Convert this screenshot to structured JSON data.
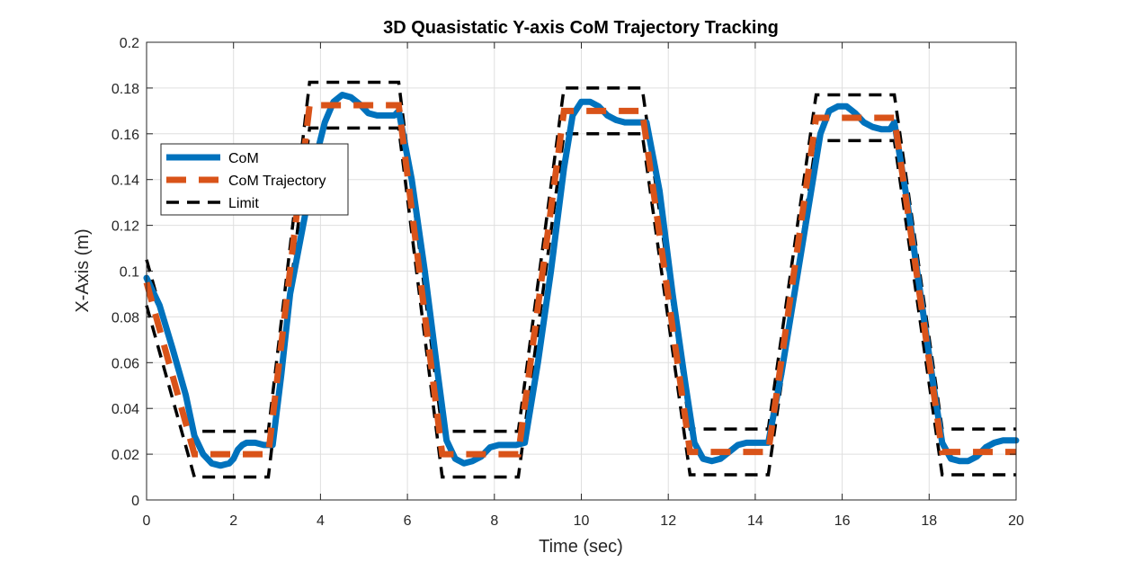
{
  "chart_data": {
    "type": "line",
    "title": "3D Quasistatic Y-axis CoM Trajectory Tracking",
    "xlabel": "Time (sec)",
    "ylabel": "X-Axis (m)",
    "xlim": [
      0,
      20
    ],
    "ylim": [
      0,
      0.2
    ],
    "xticks": [
      0,
      2,
      4,
      6,
      8,
      10,
      12,
      14,
      16,
      18,
      20
    ],
    "yticks": [
      0,
      0.02,
      0.04,
      0.06,
      0.08,
      0.1,
      0.12,
      0.14,
      0.16,
      0.18,
      0.2
    ],
    "xtick_labels": [
      "0",
      "2",
      "4",
      "6",
      "8",
      "10",
      "12",
      "14",
      "16",
      "18",
      "20"
    ],
    "ytick_labels": [
      "0",
      "0.02",
      "0.04",
      "0.06",
      "0.08",
      "0.1",
      "0.12",
      "0.14",
      "0.16",
      "0.18",
      "0.2"
    ],
    "grid": true,
    "legend_position": "upper-left",
    "series": [
      {
        "name": "CoM",
        "color": "#0072BD",
        "style": "solid",
        "x": [
          0,
          0.3,
          0.6,
          0.9,
          1.1,
          1.3,
          1.5,
          1.7,
          1.9,
          2.0,
          2.1,
          2.2,
          2.3,
          2.5,
          2.7,
          2.9,
          3.1,
          3.3,
          3.6,
          3.9,
          4.1,
          4.3,
          4.5,
          4.7,
          4.9,
          5.1,
          5.3,
          5.5,
          5.7,
          5.8,
          6.1,
          6.4,
          6.7,
          6.9,
          7.1,
          7.3,
          7.5,
          7.7,
          7.9,
          8.1,
          8.3,
          8.5,
          8.7,
          9.0,
          9.3,
          9.6,
          9.8,
          10.0,
          10.2,
          10.4,
          10.6,
          10.8,
          11.0,
          11.2,
          11.4,
          11.5,
          11.8,
          12.1,
          12.4,
          12.6,
          12.8,
          13.0,
          13.2,
          13.4,
          13.6,
          13.8,
          14.0,
          14.2,
          14.3,
          14.6,
          14.9,
          15.2,
          15.5,
          15.7,
          15.9,
          16.1,
          16.3,
          16.5,
          16.7,
          16.9,
          17.1,
          17.2,
          17.5,
          17.8,
          18.1,
          18.3,
          18.5,
          18.7,
          18.9,
          19.1,
          19.3,
          19.5,
          19.7,
          19.9,
          20.0
        ],
        "values": [
          0.097,
          0.085,
          0.066,
          0.046,
          0.028,
          0.02,
          0.016,
          0.015,
          0.016,
          0.018,
          0.022,
          0.024,
          0.025,
          0.025,
          0.024,
          0.024,
          0.055,
          0.09,
          0.12,
          0.15,
          0.165,
          0.174,
          0.177,
          0.176,
          0.173,
          0.169,
          0.168,
          0.168,
          0.168,
          0.17,
          0.14,
          0.1,
          0.055,
          0.026,
          0.018,
          0.016,
          0.017,
          0.019,
          0.023,
          0.024,
          0.024,
          0.024,
          0.025,
          0.06,
          0.1,
          0.145,
          0.168,
          0.174,
          0.174,
          0.172,
          0.168,
          0.166,
          0.165,
          0.165,
          0.165,
          0.165,
          0.135,
          0.09,
          0.05,
          0.025,
          0.018,
          0.017,
          0.018,
          0.021,
          0.024,
          0.025,
          0.025,
          0.025,
          0.025,
          0.055,
          0.09,
          0.125,
          0.16,
          0.17,
          0.172,
          0.172,
          0.169,
          0.165,
          0.163,
          0.162,
          0.162,
          0.165,
          0.13,
          0.09,
          0.05,
          0.025,
          0.018,
          0.017,
          0.017,
          0.019,
          0.023,
          0.025,
          0.026,
          0.026,
          0.026
        ]
      },
      {
        "name": "CoM Trajectory",
        "color": "#D95319",
        "style": "dashed",
        "x": [
          0,
          1.1,
          2.8,
          3.75,
          5.8,
          6.8,
          8.55,
          9.6,
          11.4,
          12.5,
          14.3,
          15.4,
          17.2,
          18.3,
          20
        ],
        "values": [
          0.095,
          0.02,
          0.02,
          0.1725,
          0.1725,
          0.02,
          0.02,
          0.17,
          0.17,
          0.021,
          0.021,
          0.167,
          0.167,
          0.021,
          0.021
        ]
      },
      {
        "name": "Limit",
        "color": "#000000",
        "style": "dashed",
        "x": [
          0,
          1.1,
          2.8,
          3.75,
          5.8,
          6.8,
          8.55,
          9.6,
          11.4,
          12.5,
          14.3,
          15.4,
          17.2,
          18.3,
          20
        ],
        "upper": [
          0.105,
          0.03,
          0.03,
          0.1825,
          0.1825,
          0.03,
          0.03,
          0.18,
          0.18,
          0.031,
          0.031,
          0.177,
          0.177,
          0.031,
          0.031
        ],
        "lower": [
          0.085,
          0.01,
          0.01,
          0.1625,
          0.1625,
          0.01,
          0.01,
          0.16,
          0.16,
          0.011,
          0.011,
          0.157,
          0.157,
          0.011,
          0.011
        ]
      }
    ]
  }
}
